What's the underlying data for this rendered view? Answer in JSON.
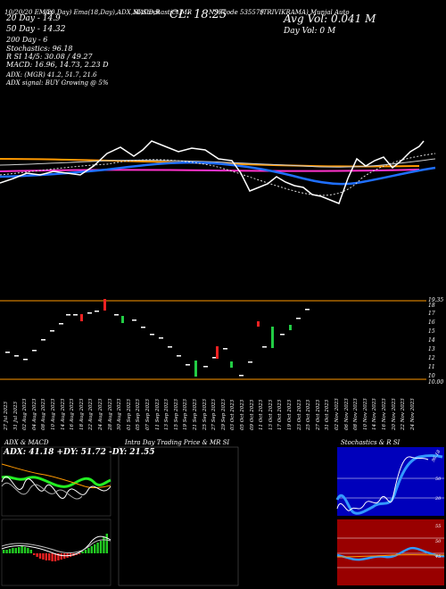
{
  "header": {
    "topleft": "10/20/20 EMAs",
    "top_left2": "(20,Day) Ema(18,Day),ADX,MACD,R",
    "top_mid": "SI,Stochastics,MR",
    "cl_label": "CL: 18.25",
    "symbol_line": "NSEcode 535579",
    "symbol_right": "(TRIVIKRAMA) Munjal Auto",
    "avg_vol": "Avg Vol: 0.041 M",
    "day_vol": "Day Vol: 0   M",
    "ema20": "20   Day - 14.9",
    "ema50": "50   Day - 14.32",
    "ema200": "200   Day - 6",
    "stochastics": "Stochastics: 96.18",
    "rsi": "R                SI 14/5: 30.08 / 49.27",
    "macd": "MACD: 16.96, 14.73, 2.23 D",
    "adx": "ADX:                                (MGR) 41.2, 51.7, 21.6",
    "adx_signal": "ADX  signal:                                      BUY Growing @ 5%"
  },
  "price_axis": [
    "19.35",
    "18",
    "17",
    "16",
    "15",
    "14",
    "13",
    "12",
    "11",
    "10",
    "10.00"
  ],
  "date_labels": [
    "27 Jul 2023",
    "31 Jul 2023",
    "02 Aug 2023",
    "04 Aug 2023",
    "08 Aug 2023",
    "10 Aug 2023",
    "14 Aug 2023",
    "16 Aug 2023",
    "18 Aug 2023",
    "22 Aug 2023",
    "24 Aug 2023",
    "28 Aug 2023",
    "30 Aug 2023",
    "01 Sep 2023",
    "05 Sep 2023",
    "07 Sep 2023",
    "11 Sep 2023",
    "13 Sep 2023",
    "15 Sep 2023",
    "19 Sep 2023",
    "21 Sep 2023",
    "25 Sep 2023",
    "27 Sep 2023",
    "29 Sep 2023",
    "03 Oct 2023",
    "05 Oct 2023",
    "09 Oct 2023",
    "11 Oct 2023",
    "13 Oct 2023",
    "17 Oct 2023",
    "19 Oct 2023",
    "23 Oct 2023",
    "25 Oct 2023",
    "27 Oct 2023",
    "31 Oct 2023",
    "02 Nov 2023",
    "06 Nov 2023",
    "08 Nov 2023",
    "10 Nov 2023",
    "14 Nov 2023",
    "16 Nov 2023",
    "20 Nov 2023",
    "22 Nov 2023",
    "24 Nov 2023"
  ],
  "panels": {
    "adx_macd": {
      "title": "ADX  & MACD",
      "adx_text": "ADX: 41.18  +DY: 51.72  -DY: 21.55"
    },
    "intraday": {
      "title": "Intra  Day Trading Price  & MR                              SI"
    },
    "stoch": {
      "title": "Stochastics & R                                SI",
      "labels": [
        "96.18",
        "50",
        "20",
        "55",
        "50",
        "45"
      ]
    }
  },
  "colors": {
    "bg": "#000000",
    "ema_blue": "#1f6fff",
    "ema_orange": "#ff9900",
    "ema_magenta": "#ff33cc",
    "up": "#22cc44",
    "down": "#ee2222",
    "stoch_bg": "#0000bb",
    "rsi_bg": "#990000"
  }
}
